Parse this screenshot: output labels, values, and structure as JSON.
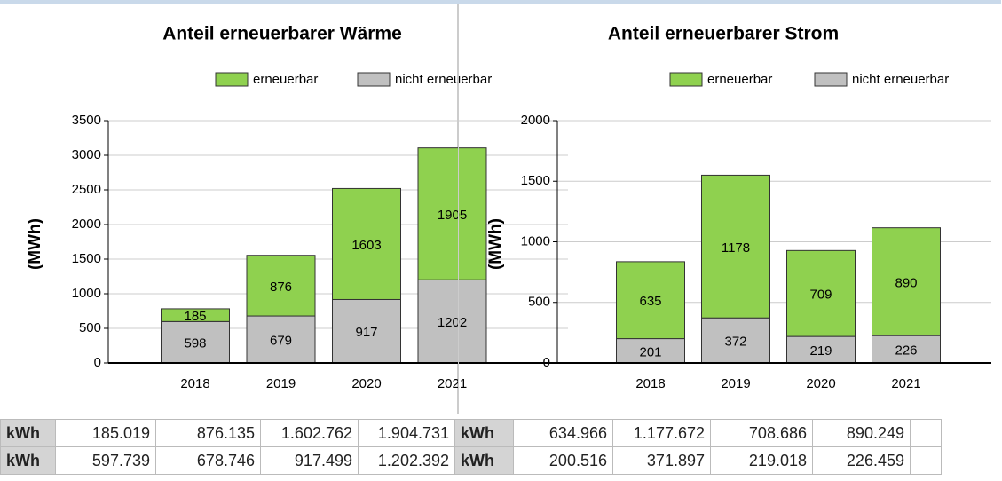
{
  "chart_data": [
    {
      "type": "bar",
      "stacked": true,
      "title": "Anteil erneuerbarer Wärme",
      "ylabel": "(MWh)",
      "categories": [
        "2018",
        "2019",
        "2020",
        "2021"
      ],
      "series": [
        {
          "name": "erneuerbar",
          "color": "#8fd14f",
          "values": [
            185,
            876,
            1603,
            1905
          ]
        },
        {
          "name": "nicht erneuerbar",
          "color": "#c0c0c0",
          "values": [
            598,
            679,
            917,
            1202
          ]
        }
      ],
      "ylim": [
        0,
        3500
      ],
      "yticks": [
        0,
        500,
        1000,
        1500,
        2000,
        2500,
        3000,
        3500
      ],
      "grid": true,
      "legend": "top"
    },
    {
      "type": "bar",
      "stacked": true,
      "title": "Anteil erneuerbarer Strom",
      "ylabel": "(MWh)",
      "categories": [
        "2018",
        "2019",
        "2020",
        "2021"
      ],
      "series": [
        {
          "name": "erneuerbar",
          "color": "#8fd14f",
          "values": [
            635,
            1178,
            709,
            890
          ]
        },
        {
          "name": "nicht erneuerbar",
          "color": "#c0c0c0",
          "values": [
            201,
            372,
            219,
            226
          ]
        }
      ],
      "ylim": [
        0,
        2000
      ],
      "yticks": [
        0,
        500,
        1000,
        1500,
        2000
      ],
      "grid": true,
      "legend": "top"
    }
  ],
  "tables": [
    {
      "rows": [
        [
          "kWh",
          "185.019",
          "876.135",
          "1.602.762",
          "1.904.731"
        ],
        [
          "kWh",
          "597.739",
          "678.746",
          "917.499",
          "1.202.392"
        ]
      ]
    },
    {
      "rows": [
        [
          "kWh",
          "634.966",
          "1.177.672",
          "708.686",
          "890.249"
        ],
        [
          "kWh",
          "200.516",
          "371.897",
          "219.018",
          "226.459"
        ]
      ]
    }
  ]
}
